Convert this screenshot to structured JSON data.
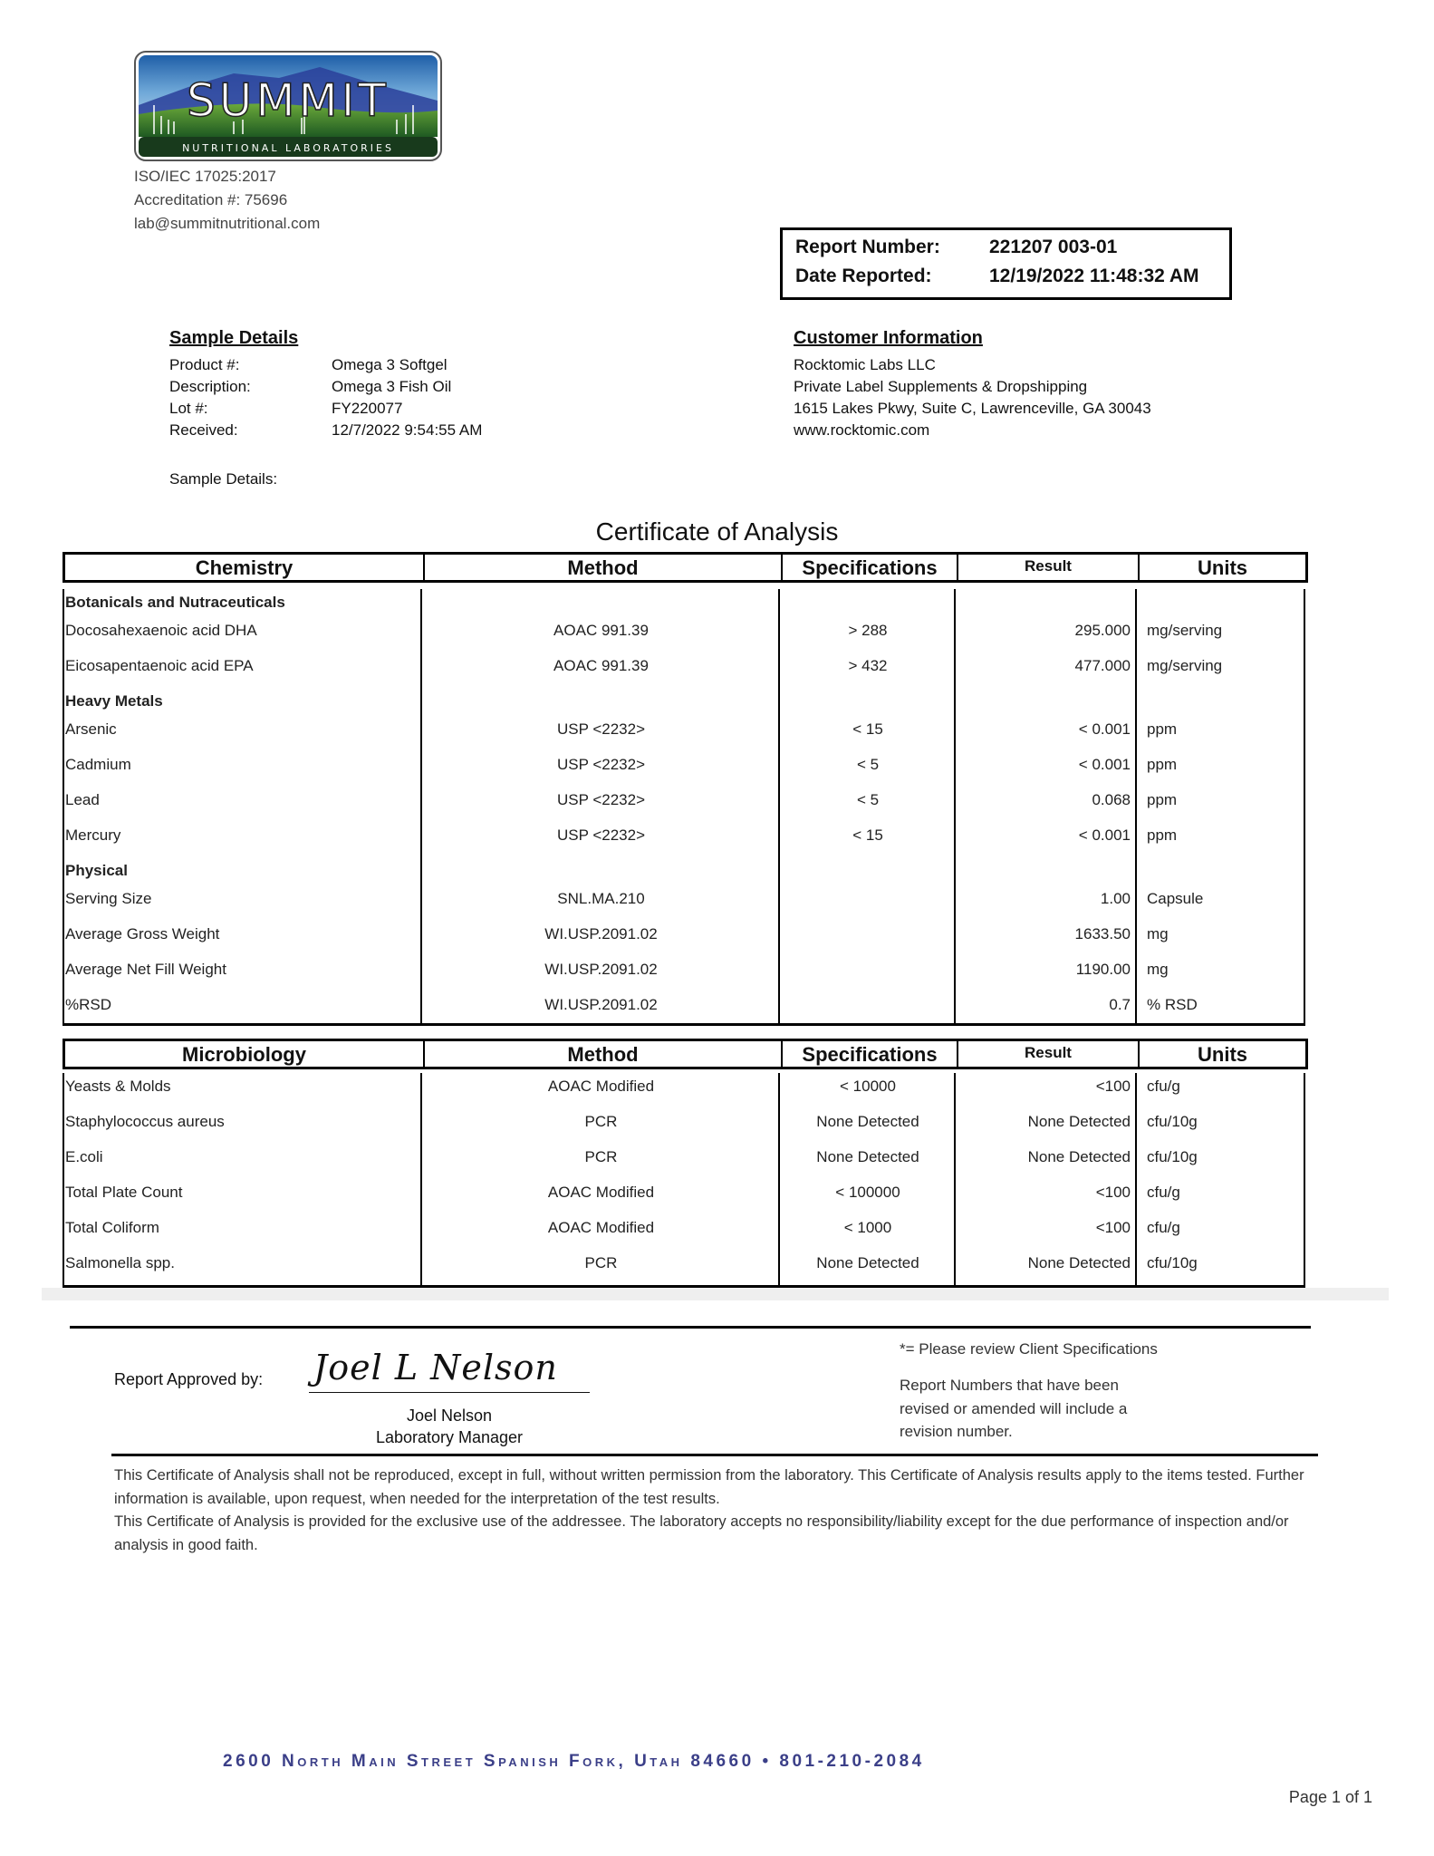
{
  "lab": {
    "logo_text": "SUMMIT",
    "logo_subtext": "NUTRITIONAL LABORATORIES",
    "iso": "ISO/IEC 17025:2017",
    "accreditation": "Accreditation #: 75696",
    "email": "lab@summitnutritional.com"
  },
  "report": {
    "number_label": "Report Number:",
    "number_value": "221207 003-01",
    "date_label": "Date Reported:",
    "date_value": "12/19/2022 11:48:32 AM"
  },
  "sample": {
    "heading": "Sample Details",
    "fields": [
      {
        "label": "Product #:",
        "value": "Omega 3 Softgel"
      },
      {
        "label": "Description:",
        "value": "Omega 3 Fish Oil"
      },
      {
        "label": "Lot #:",
        "value": "FY220077"
      },
      {
        "label": "Received:",
        "value": "12/7/2022 9:54:55 AM"
      }
    ],
    "details_label": "Sample Details:"
  },
  "customer": {
    "heading": "Customer Information",
    "lines": [
      "Rocktomic Labs LLC",
      "Private Label Supplements & Dropshipping",
      "1615 Lakes Pkwy, Suite C, Lawrenceville, GA 30043",
      "www.rocktomic.com"
    ]
  },
  "title": "Certificate of Analysis",
  "chemistry_table": {
    "headers": [
      "Chemistry",
      "Method",
      "Specifications",
      "Result",
      "Units"
    ],
    "rows": [
      {
        "section": "Botanicals and Nutraceuticals"
      },
      {
        "name": "Docosahexaenoic acid DHA",
        "method": "AOAC 991.39",
        "spec": "> 288",
        "result": "295.000",
        "units": "mg/serving"
      },
      {
        "name": "Eicosapentaenoic acid EPA",
        "method": "AOAC 991.39",
        "spec": "> 432",
        "result": "477.000",
        "units": "mg/serving"
      },
      {
        "section": "Heavy Metals"
      },
      {
        "name": "Arsenic",
        "method": "USP <2232>",
        "spec": "< 15",
        "result": "< 0.001",
        "units": "ppm"
      },
      {
        "name": "Cadmium",
        "method": "USP <2232>",
        "spec": "< 5",
        "result": "< 0.001",
        "units": "ppm"
      },
      {
        "name": "Lead",
        "method": "USP <2232>",
        "spec": "< 5",
        "result": "0.068",
        "units": "ppm"
      },
      {
        "name": "Mercury",
        "method": "USP <2232>",
        "spec": "< 15",
        "result": "< 0.001",
        "units": "ppm"
      },
      {
        "section": "Physical"
      },
      {
        "name": "Serving Size",
        "method": "SNL.MA.210",
        "spec": "",
        "result": "1.00",
        "units": "Capsule"
      },
      {
        "name": "Average Gross Weight",
        "method": "WI.USP.2091.02",
        "spec": "",
        "result": "1633.50",
        "units": "mg"
      },
      {
        "name": "Average Net Fill Weight",
        "method": "WI.USP.2091.02",
        "spec": "",
        "result": "1190.00",
        "units": "mg"
      },
      {
        "name": "%RSD",
        "method": "WI.USP.2091.02",
        "spec": "",
        "result": "0.7",
        "units": "% RSD"
      }
    ]
  },
  "micro_table": {
    "headers": [
      "Microbiology",
      "Method",
      "Specifications",
      "Result",
      "Units"
    ],
    "rows": [
      {
        "name": "Yeasts & Molds",
        "method": "AOAC Modified",
        "spec": "< 10000",
        "result": "<100",
        "units": "cfu/g"
      },
      {
        "name": "Staphylococcus aureus",
        "method": "PCR",
        "spec": "None Detected",
        "result": "None Detected",
        "units": "cfu/10g"
      },
      {
        "name": "E.coli",
        "method": "PCR",
        "spec": "None Detected",
        "result": "None Detected",
        "units": "cfu/10g"
      },
      {
        "name": "Total Plate Count",
        "method": "AOAC Modified",
        "spec": "< 100000",
        "result": "<100",
        "units": "cfu/g"
      },
      {
        "name": "Total Coliform",
        "method": "AOAC Modified",
        "spec": "< 1000",
        "result": "<100",
        "units": "cfu/g"
      },
      {
        "name": "Salmonella spp.",
        "method": "PCR",
        "spec": "None Detected",
        "result": "None Detected",
        "units": "cfu/10g"
      }
    ]
  },
  "approval": {
    "label": "Report Approved by:",
    "signature": "Joel L Nelson",
    "name": "Joel Nelson",
    "title": "Laboratory Manager"
  },
  "notes": {
    "client_spec": "*= Please review Client Specifications",
    "revision": [
      "Report Numbers that have been",
      "revised or amended will include a",
      "revision number."
    ]
  },
  "disclaimer": [
    "This Certificate of Analysis shall not be reproduced, except in full, without written permission from the laboratory. This Certificate of Analysis results apply to the items tested. Further information is available, upon request, when needed for the interpretation of the test results.",
    "This Certificate of Analysis is provided for the exclusive use of the addressee. The laboratory accepts no responsibility/liability except for the due performance of inspection and/or analysis in good faith."
  ],
  "footer": {
    "address": "2600 North Main Street Spanish Fork, Utah  84660 • 801-210-2084",
    "page": "Page 1 of 1",
    "address_color": "#3b3f88"
  }
}
